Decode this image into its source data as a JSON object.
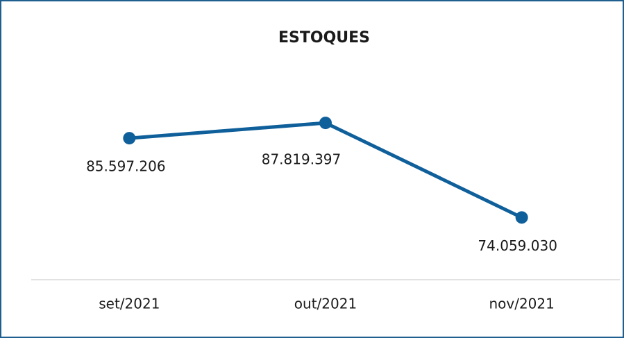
{
  "chart_data": {
    "type": "line",
    "title": "ESTOQUES",
    "categories": [
      "set/2021",
      "out/2021",
      "nov/2021"
    ],
    "series": [
      {
        "name": "Estoques",
        "color": "#0f5f9b",
        "values": [
          85597206,
          87819397,
          74059030
        ],
        "value_labels": [
          "85.597.206",
          "87.819.397",
          "74.059.030"
        ]
      }
    ],
    "ylim": [
      65000000,
      95000000
    ]
  }
}
